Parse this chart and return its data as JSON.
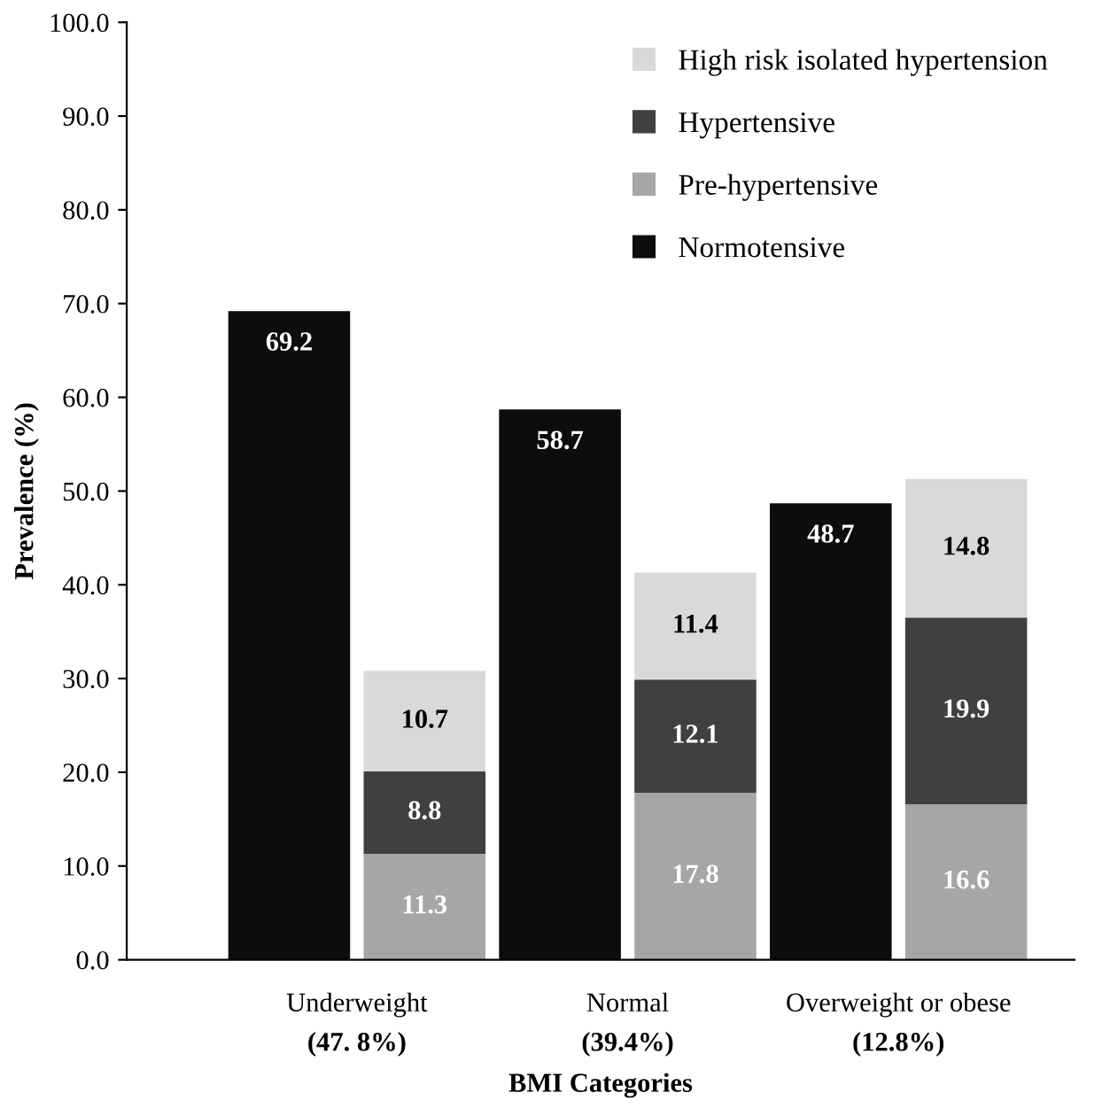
{
  "chart_data": {
    "type": "bar",
    "stacked": true,
    "xlabel": "BMI Categories",
    "ylabel": "Prevalence (%)",
    "categories": [
      "Underweight\n(47. 8%)",
      null,
      "Normal\n(39.4%)",
      null,
      "Overweight or obese\n(12.8%)",
      null
    ],
    "series": [
      {
        "name": "Normotensive",
        "color": "#0d0d0d",
        "values": [
          69.2,
          null,
          58.7,
          null,
          48.7,
          null
        ]
      },
      {
        "name": "Pre-hypertensive",
        "color": "#a6a6a6",
        "values": [
          null,
          11.3,
          null,
          17.8,
          null,
          16.6
        ]
      },
      {
        "name": "Hypertensive",
        "color": "#404040",
        "values": [
          null,
          8.8,
          null,
          12.1,
          null,
          19.9
        ]
      },
      {
        "name": "High risk isolated hypertension",
        "color": "#d9d9d9",
        "values": [
          null,
          10.7,
          null,
          11.4,
          null,
          14.8
        ]
      }
    ],
    "ylim": [
      0,
      100
    ],
    "yticks": [
      {
        "value": 0,
        "label": "0.0"
      },
      {
        "value": 10,
        "label": "10.0"
      },
      {
        "value": 20,
        "label": "20.0"
      },
      {
        "value": 30,
        "label": "30.0"
      },
      {
        "value": 40,
        "label": "40.0"
      },
      {
        "value": 50,
        "label": "50.0"
      },
      {
        "value": 60,
        "label": "60.0"
      },
      {
        "value": 70,
        "label": "70.0"
      },
      {
        "value": 80,
        "label": "80.0"
      },
      {
        "value": 90,
        "label": "90.0"
      },
      {
        "value": 100,
        "label": "100.0"
      }
    ],
    "data_labels": true,
    "legend": "top right",
    "grid": false
  }
}
